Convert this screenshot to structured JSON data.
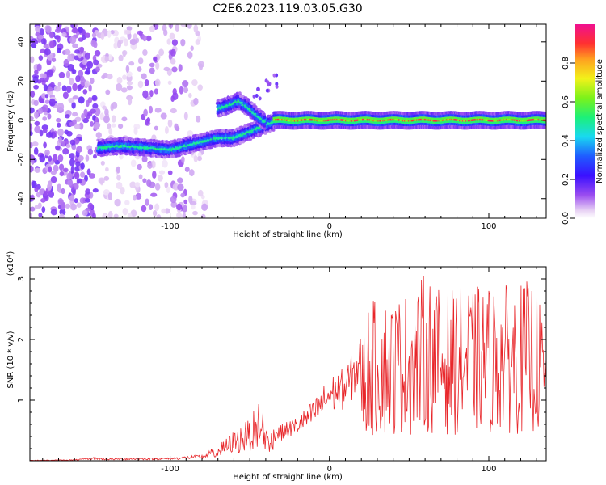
{
  "title": "C2E6.2023.119.03.05.G30",
  "chart_data": [
    {
      "type": "heatmap",
      "xlabel": "Height of straight line (km)",
      "ylabel": "Frequency (Hz)",
      "xlim": [
        -188,
        136
      ],
      "ylim": [
        -50,
        49
      ],
      "xticks": [
        -100,
        0,
        100
      ],
      "yticks": [
        -40,
        -20,
        0,
        20,
        40
      ],
      "colorbar": {
        "label": "Normalized spectral amplitude",
        "range": [
          0,
          1
        ],
        "ticks": [
          "0.0",
          "0.2",
          "0.4",
          "0.6",
          "0.8"
        ],
        "colormap": "rainbow (white→purple→blue→cyan→green→yellow→red→magenta)"
      },
      "features": [
        {
          "name": "noise region",
          "x_range": [
            -188,
            -78
          ],
          "freq_range": [
            -50,
            49
          ],
          "amplitude": "low"
        },
        {
          "name": "lower branch",
          "points": [
            [
              -145,
              -14
            ],
            [
              -130,
              -13
            ],
            [
              -115,
              -14
            ],
            [
              -100,
              -15
            ],
            [
              -90,
              -13
            ],
            [
              -80,
              -11
            ],
            [
              -70,
              -9
            ],
            [
              -60,
              -9
            ],
            [
              -50,
              -6
            ],
            [
              -42,
              -3
            ],
            [
              -35,
              -1
            ]
          ],
          "amplitude": "medium"
        },
        {
          "name": "upper branch",
          "points": [
            [
              -70,
              6
            ],
            [
              -62,
              8
            ],
            [
              -57,
              10
            ],
            [
              -50,
              6
            ],
            [
              -45,
              2
            ],
            [
              -40,
              -1
            ]
          ],
          "amplitude": "medium"
        },
        {
          "name": "scatter",
          "points": [
            [
              -45,
              14
            ],
            [
              -40,
              18
            ],
            [
              -36,
              20
            ]
          ],
          "amplitude": "low"
        },
        {
          "name": "carrier line",
          "x_range": [
            -35,
            136
          ],
          "frequency": 0,
          "amplitude": "high"
        }
      ]
    },
    {
      "type": "line",
      "xlabel": "Height of straight line (km)",
      "ylabel": "SNR (10 * v/v)",
      "y_multiplier": "(x10⁴)",
      "xlim": [
        -188,
        136
      ],
      "ylim": [
        0,
        3.2
      ],
      "xticks": [
        -100,
        0,
        100
      ],
      "yticks": [
        1,
        2,
        3
      ],
      "color": "#e8262a",
      "series": [
        {
          "envelope": [
            [
              -188,
              0.01
            ],
            [
              -160,
              0.02
            ],
            [
              -148,
              0.06
            ],
            [
              -140,
              0.04
            ],
            [
              -120,
              0.05
            ],
            [
              -100,
              0.05
            ],
            [
              -90,
              0.08
            ],
            [
              -80,
              0.1
            ],
            [
              -70,
              0.25
            ],
            [
              -60,
              0.5
            ],
            [
              -50,
              0.7
            ],
            [
              -44,
              1.0
            ],
            [
              -40,
              0.55
            ],
            [
              -30,
              0.6
            ],
            [
              -20,
              0.75
            ],
            [
              -10,
              1.0
            ],
            [
              0,
              1.4
            ],
            [
              10,
              1.55
            ],
            [
              20,
              2.1
            ],
            [
              25,
              2.65
            ],
            [
              40,
              2.7
            ],
            [
              55,
              2.85
            ],
            [
              60,
              3.15
            ],
            [
              70,
              2.8
            ],
            [
              90,
              2.9
            ],
            [
              110,
              2.9
            ],
            [
              130,
              3.0
            ],
            [
              136,
              2.0
            ]
          ]
        }
      ]
    }
  ]
}
